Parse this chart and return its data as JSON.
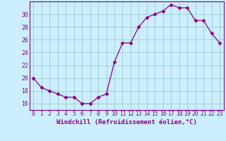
{
  "hours": [
    0,
    1,
    2,
    3,
    4,
    5,
    6,
    7,
    8,
    9,
    10,
    11,
    12,
    13,
    14,
    15,
    16,
    17,
    18,
    19,
    20,
    21,
    22,
    23
  ],
  "values": [
    20,
    18.5,
    18,
    17.5,
    17,
    17,
    16,
    16,
    17,
    17.5,
    22.5,
    25.5,
    25.5,
    28,
    29.5,
    30,
    30.5,
    31.5,
    31,
    31,
    29,
    29,
    27,
    25.5
  ],
  "line_color": "#880088",
  "marker": "D",
  "marker_size": 2.5,
  "bg_color": "#cceeff",
  "grid_color": "#99cccc",
  "xlabel": "Windchill (Refroidissement éolien,°C)",
  "xlabel_color": "#880088",
  "ylabel_ticks": [
    16,
    18,
    20,
    22,
    24,
    26,
    28,
    30
  ],
  "ylim": [
    15.0,
    32.0
  ],
  "xlim": [
    -0.5,
    23.5
  ],
  "tick_color": "#880088",
  "label_fontsize": 6.5,
  "tick_fontsize": 5.8,
  "spine_color": "#880088"
}
